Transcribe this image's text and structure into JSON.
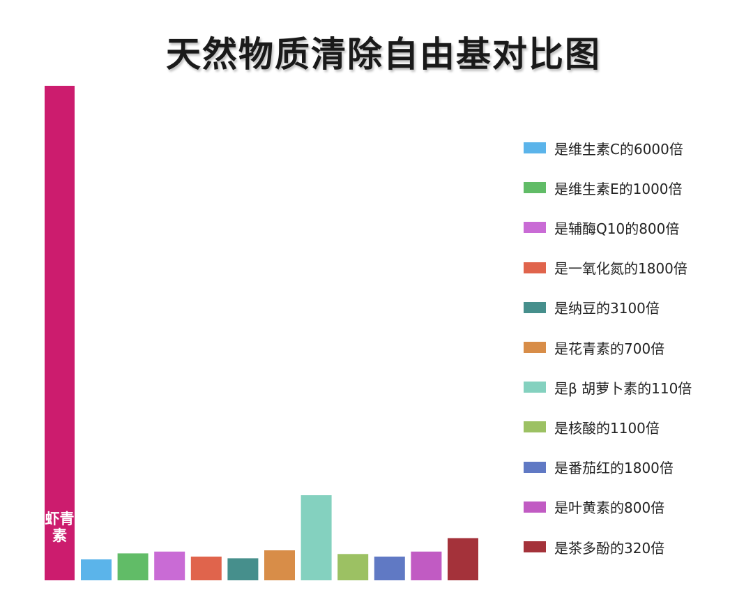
{
  "title": "天然物质清除自由基对比图",
  "chart_data": {
    "type": "bar",
    "title": "天然物质清除自由基对比图",
    "xlabel": "",
    "ylabel": "",
    "grid": false,
    "legend_position": "right",
    "primary": {
      "label": "虾青素",
      "value": 6000,
      "color": "#cc1c6e"
    },
    "series": [
      {
        "name": "是维生素C的6000倍",
        "value": 1,
        "color": "#5bb4ea"
      },
      {
        "name": "是维生素E的1000倍",
        "value": 6,
        "color": "#61bc67"
      },
      {
        "name": "是辅酶Q10的800倍",
        "value": 7.5,
        "color": "#c96bd5"
      },
      {
        "name": "是一氧化氮的1800倍",
        "value": 3.33,
        "color": "#e0644c"
      },
      {
        "name": "是纳豆的3100倍",
        "value": 1.94,
        "color": "#468f8c"
      },
      {
        "name": "是花青素的700倍",
        "value": 8.57,
        "color": "#d88d48"
      },
      {
        "name": "是β 胡萝卜素的110倍",
        "value": 54.5,
        "color": "#84d1bf"
      },
      {
        "name": "是核酸的1100倍",
        "value": 5.45,
        "color": "#9cc163"
      },
      {
        "name": "是番茄红的1800倍",
        "value": 3.33,
        "color": "#6079c4"
      },
      {
        "name": "是叶黄素的800倍",
        "value": 7.5,
        "color": "#c15bc3"
      },
      {
        "name": "是茶多酚的320倍",
        "value": 18.75,
        "color": "#a4323a"
      }
    ]
  }
}
